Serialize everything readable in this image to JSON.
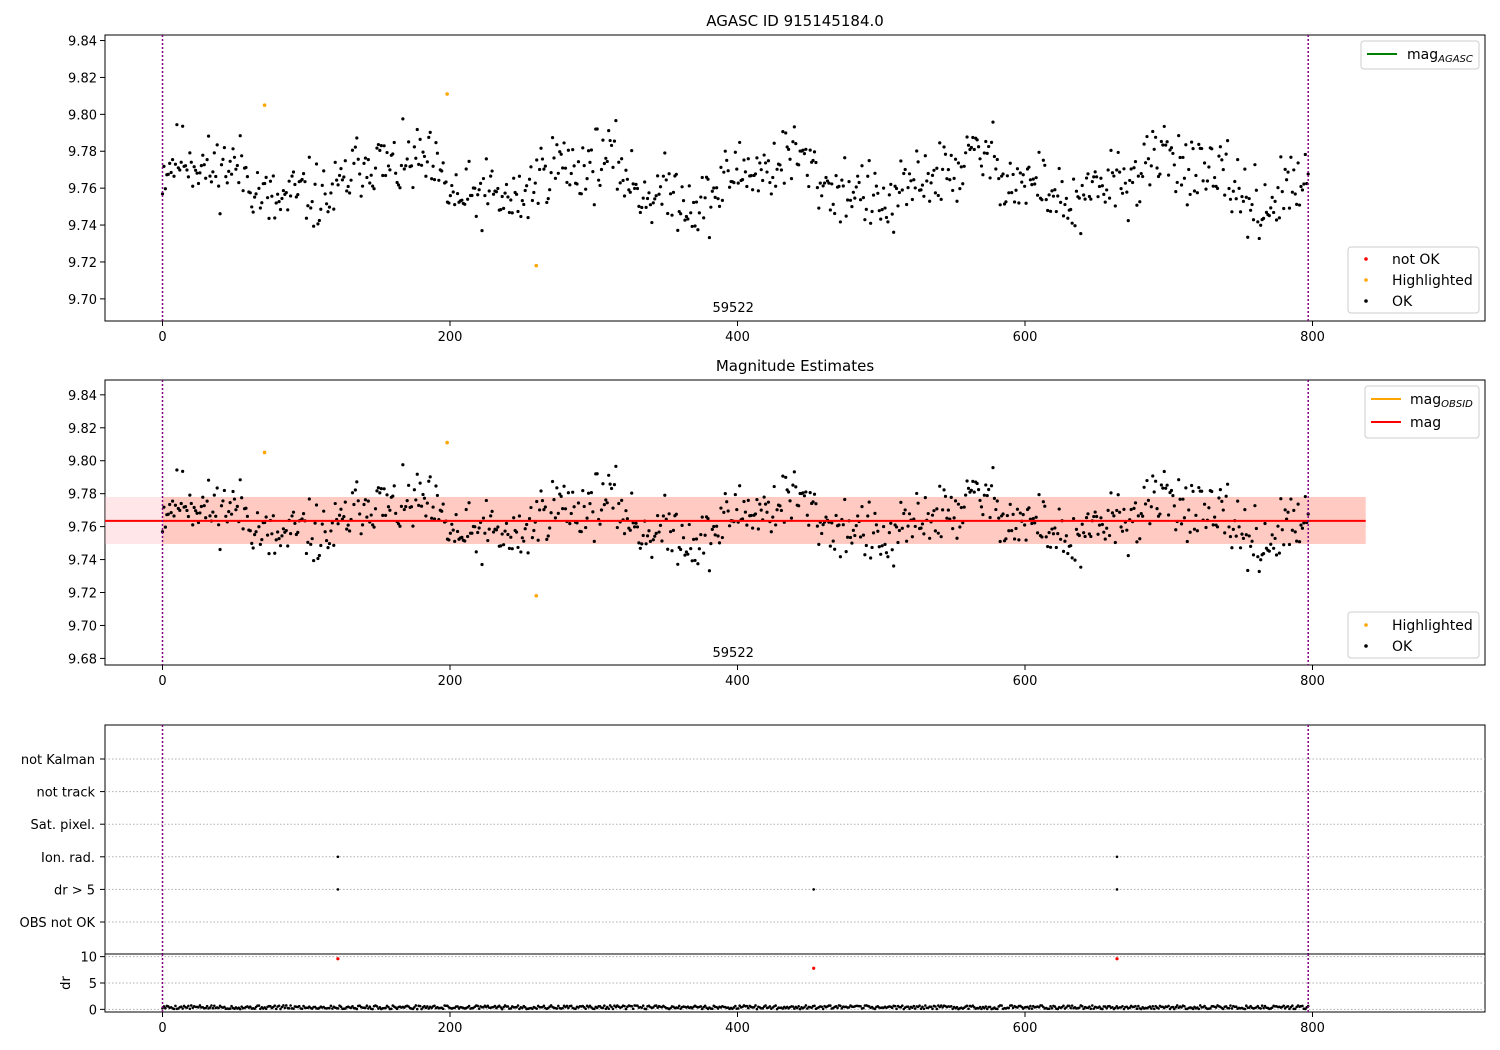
{
  "chart_data": [
    {
      "type": "scatter",
      "title": "AGASC ID 915145184.0",
      "xlim": [
        -40,
        920
      ],
      "ylim": [
        9.688,
        9.843
      ],
      "xticks": [
        0,
        200,
        400,
        600,
        800
      ],
      "yticks": [
        9.7,
        9.72,
        9.74,
        9.76,
        9.78,
        9.8,
        9.82,
        9.84
      ],
      "annotation": "59522",
      "vlines": [
        0,
        797
      ],
      "colors": {
        "not OK": "#ff0000",
        "Highlighted": "#ffa500",
        "OK": "#000000",
        "mag_agasc": "#008000"
      },
      "line_legend": {
        "label": "mag",
        "sub": "AGASC"
      },
      "marker_legend": [
        "not OK",
        "Highlighted",
        "OK"
      ],
      "highlighted_points": [
        [
          71,
          9.805
        ],
        [
          198,
          9.811
        ],
        [
          260,
          9.718
        ]
      ],
      "ok_sample": {
        "n": 797,
        "x_range": [
          0,
          797
        ],
        "y_min": 9.725,
        "y_max": 9.801,
        "seed": 11
      }
    },
    {
      "type": "scatter",
      "title": "Magnitude Estimates",
      "xlim": [
        -40,
        920
      ],
      "ylim": [
        9.676,
        9.849
      ],
      "xticks": [
        0,
        200,
        400,
        600,
        800
      ],
      "yticks": [
        9.68,
        9.7,
        9.72,
        9.74,
        9.76,
        9.78,
        9.8,
        9.82,
        9.84
      ],
      "annotation": "59522",
      "vlines": [
        0,
        797
      ],
      "mag_line": {
        "value": 9.7635,
        "x_range": [
          0,
          837
        ],
        "color": "#ff0000"
      },
      "bands": [
        {
          "range": [
            9.7495,
            9.778
          ],
          "x_range": [
            0,
            837
          ],
          "color": "#ffa07a",
          "opacity": 0.45
        },
        {
          "range": [
            9.7495,
            9.778
          ],
          "x_range": [
            -40,
            837
          ],
          "color": "#ffb6c1",
          "opacity": 0.35
        }
      ],
      "colors": {
        "Highlighted": "#ffa500",
        "OK": "#000000",
        "mag_obsid": "#ffa500",
        "mag": "#ff0000"
      },
      "line_legend": [
        {
          "label": "mag",
          "sub": "OBSID"
        },
        {
          "label": "mag",
          "sub": ""
        }
      ],
      "marker_legend": [
        "Highlighted",
        "OK"
      ],
      "highlighted_points": [
        [
          71,
          9.805
        ],
        [
          198,
          9.811
        ],
        [
          260,
          9.718
        ]
      ],
      "ok_sample": {
        "n": 797,
        "x_range": [
          0,
          797
        ],
        "y_min": 9.725,
        "y_max": 9.801,
        "seed": 11
      }
    },
    {
      "type": "scatter",
      "title": "",
      "xlim": [
        -40,
        920
      ],
      "xticks": [
        0,
        200,
        400,
        600,
        800
      ],
      "categories": [
        "not Kalman",
        "not track",
        "Sat. pixel.",
        "Ion. rad.",
        "dr > 5",
        "OBS not OK"
      ],
      "flag_points": [
        {
          "category": "Ion. rad.",
          "x": [
            122,
            664
          ]
        },
        {
          "category": "dr > 5",
          "x": [
            122,
            453,
            664
          ]
        }
      ],
      "vlines": [
        0,
        797
      ]
    },
    {
      "type": "scatter",
      "title": "",
      "ylabel": "dr",
      "xlim": [
        -40,
        920
      ],
      "ylim": [
        -0.5,
        10.5
      ],
      "xticks": [
        0,
        200,
        400,
        600,
        800
      ],
      "yticks": [
        0,
        5,
        10
      ],
      "red_points": [
        [
          122,
          9.6
        ],
        [
          453,
          7.8
        ],
        [
          664,
          9.6
        ]
      ],
      "baseline_sample": {
        "n": 797,
        "x_range": [
          0,
          797
        ],
        "y_min": 0.05,
        "y_max": 0.75
      },
      "vlines": [
        0,
        797
      ]
    }
  ]
}
